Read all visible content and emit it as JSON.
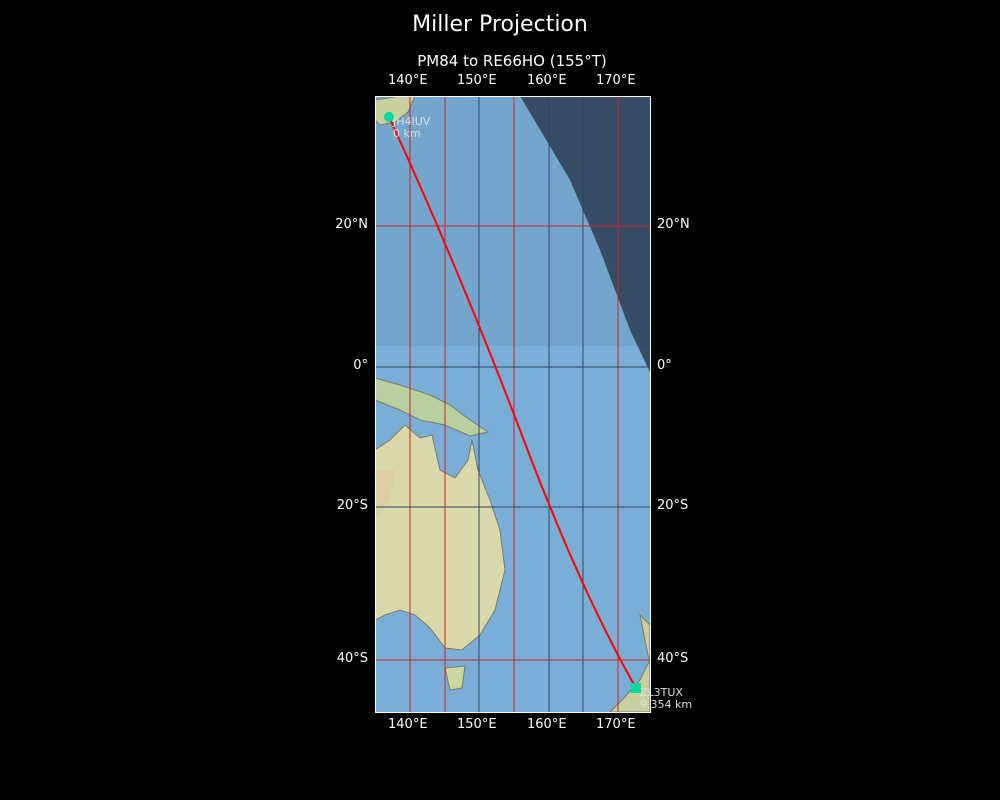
{
  "title": "Miller Projection",
  "subtitle": "PM84 to RE66HO (155°T)",
  "lon_ticks": [
    "140°E",
    "150°E",
    "160°E",
    "170°E"
  ],
  "lat_ticks": [
    "20°N",
    "0°",
    "20°S",
    "40°S"
  ],
  "start": {
    "call": "JH4IUV",
    "dist": "0 km"
  },
  "end": {
    "call": "ZL3TUX",
    "dist": "9,354 km"
  },
  "colors": {
    "path": "#ff0000",
    "marker": "#00d9a0",
    "ocean": "#7aaed6",
    "night": "#2b3d52"
  }
}
